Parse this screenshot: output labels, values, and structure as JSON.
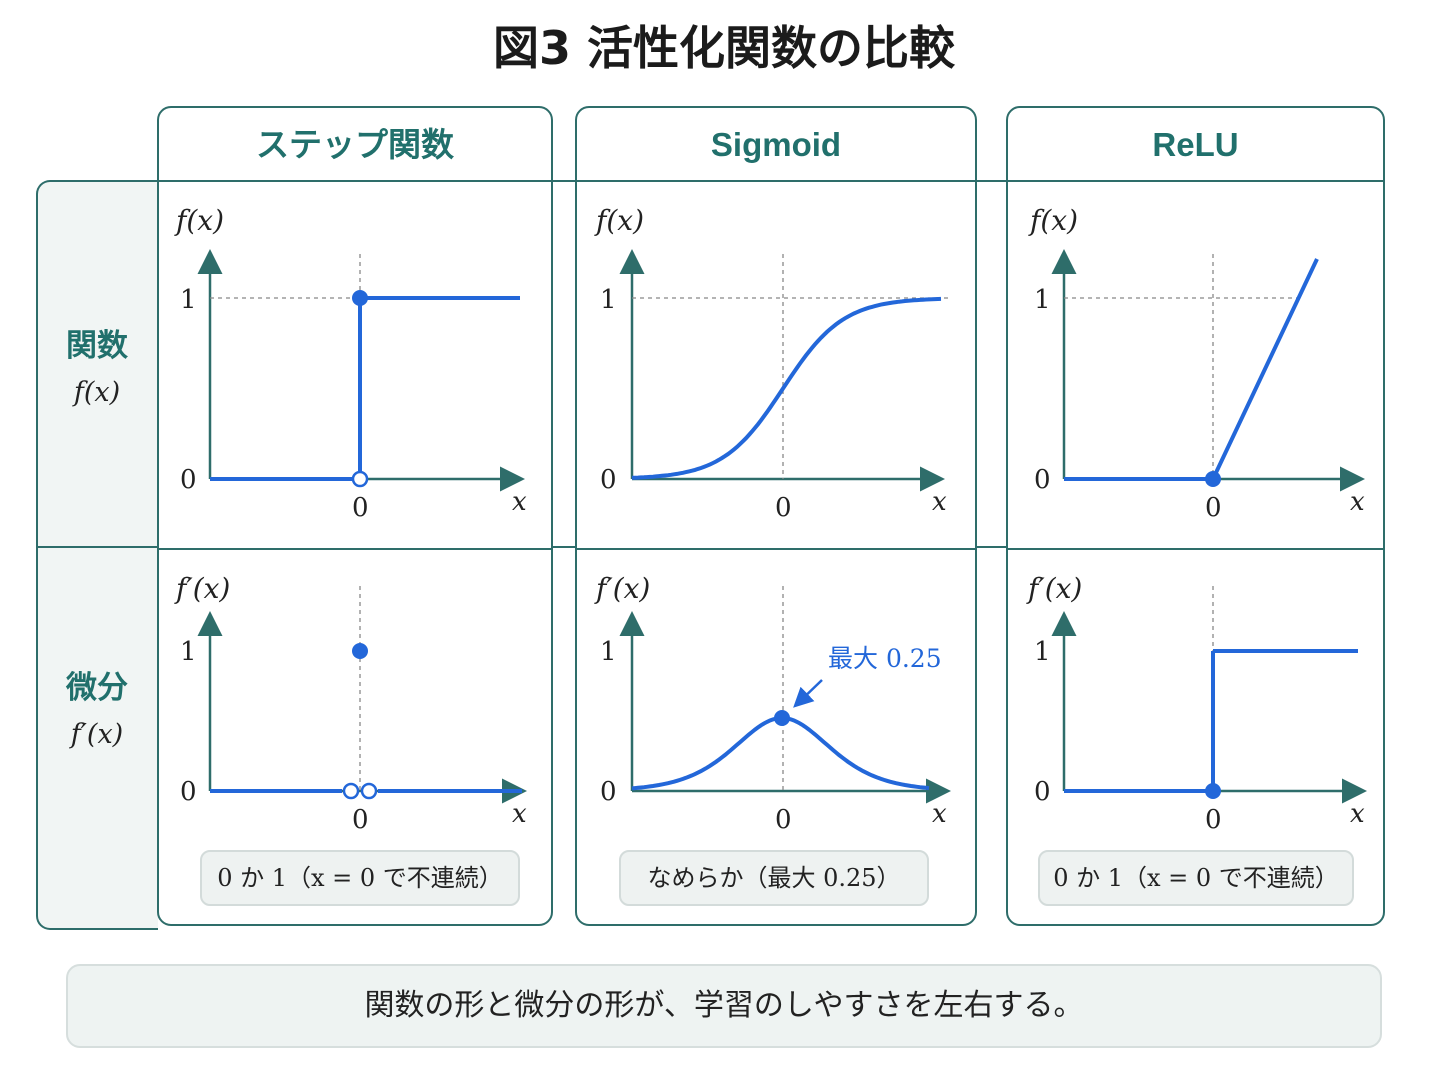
{
  "title": "図3 活性化関数の比較",
  "rows": [
    {
      "label": "関数",
      "func": "f(x)"
    },
    {
      "label": "微分",
      "func": "f′(x)"
    }
  ],
  "columns": [
    {
      "name": "ステップ関数",
      "caption": "0 か 1（x = 0 で不連続）"
    },
    {
      "name": "Sigmoid",
      "caption": "なめらか（最大 0.25）"
    },
    {
      "name": "ReLU",
      "caption": "0 か 1（x = 0 で不連続）"
    }
  ],
  "axis_labels": {
    "y_function": "f(x)",
    "y_derivative": "f′(x)",
    "x": "x",
    "tick_one": "1",
    "tick_zero": "0",
    "origin": "0"
  },
  "annotation": {
    "text": "最大 0.25"
  },
  "summary": "関数の形と微分の形が、学習のしやすさを左右する。",
  "colors": {
    "accent": "#2367d9",
    "frame": "#2e6d6a",
    "header_text": "#21706c"
  }
}
